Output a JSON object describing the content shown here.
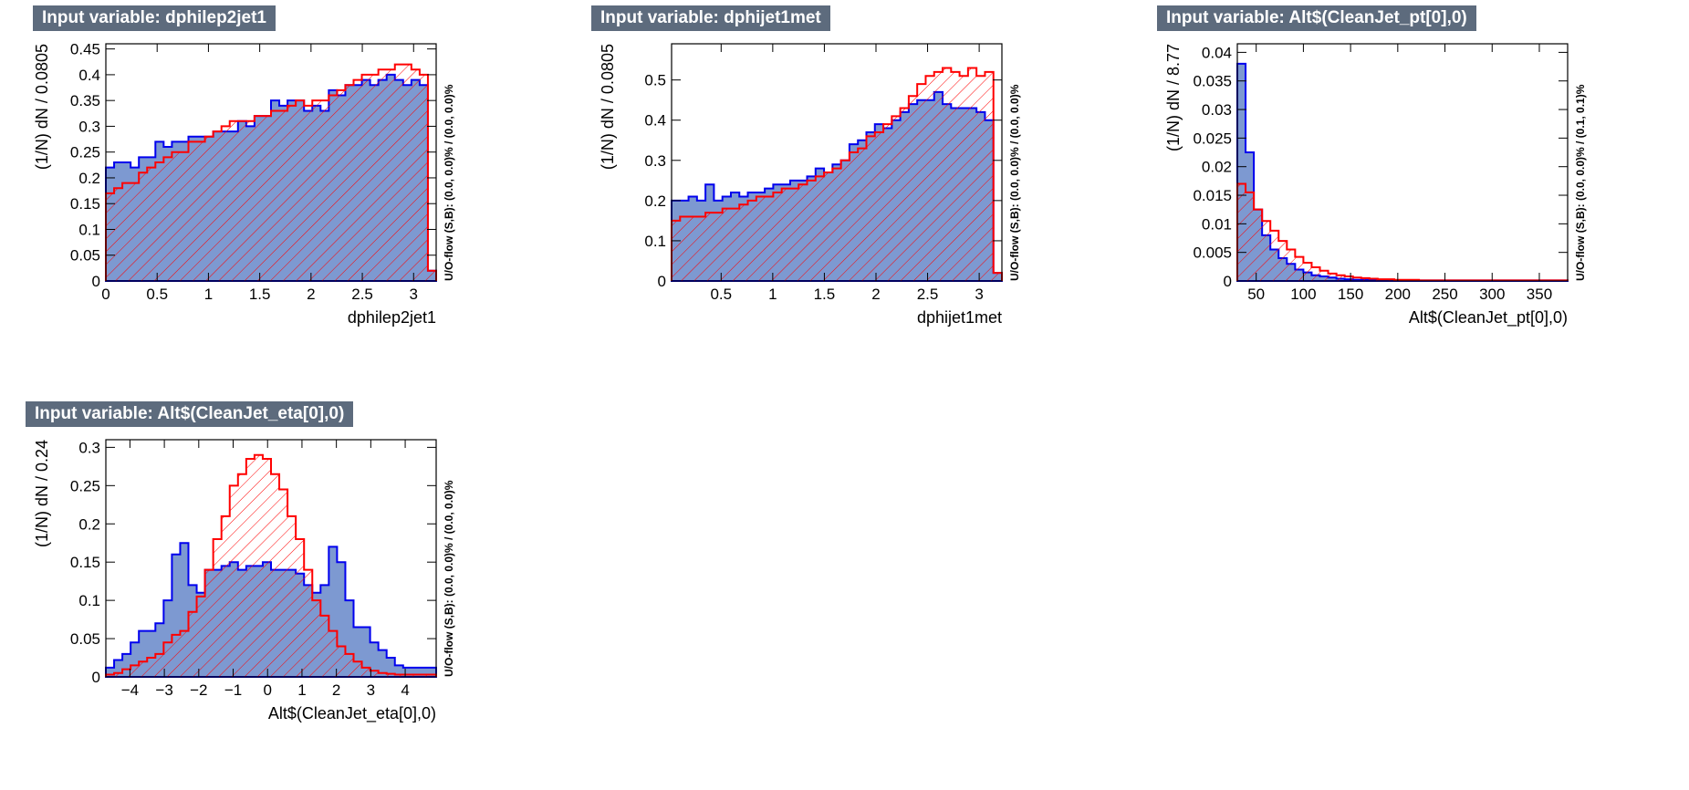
{
  "chart_data": [
    {
      "type": "histogram",
      "title": "Input variable: dphilep2jet1",
      "xlabel": "dphilep2jet1",
      "ylabel": "(1/N) dN / 0.0805",
      "side_label": "U/O-flow (S,B): (0.0, 0.0)% / (0.0, 0.0)%",
      "xlim": [
        0,
        3.22
      ],
      "ylim": [
        0,
        0.46
      ],
      "xticks": [
        "0",
        "0.5",
        "1",
        "1.5",
        "2",
        "2.5",
        "3"
      ],
      "yticks": [
        "0",
        "0.05",
        "0.1",
        "0.15",
        "0.2",
        "0.25",
        "0.3",
        "0.35",
        "0.4",
        "0.45"
      ],
      "series": [
        {
          "values": [
            0.22,
            0.23,
            0.23,
            0.22,
            0.24,
            0.24,
            0.27,
            0.26,
            0.27,
            0.27,
            0.28,
            0.28,
            0.28,
            0.29,
            0.29,
            0.29,
            0.31,
            0.3,
            0.32,
            0.32,
            0.35,
            0.34,
            0.35,
            0.35,
            0.33,
            0.34,
            0.33,
            0.37,
            0.36,
            0.38,
            0.38,
            0.39,
            0.38,
            0.39,
            0.4,
            0.39,
            0.38,
            0.39,
            0.38,
            0.02
          ]
        },
        {
          "values": [
            0.17,
            0.18,
            0.19,
            0.19,
            0.21,
            0.22,
            0.23,
            0.24,
            0.25,
            0.25,
            0.27,
            0.27,
            0.28,
            0.29,
            0.3,
            0.31,
            0.31,
            0.31,
            0.32,
            0.32,
            0.33,
            0.33,
            0.34,
            0.35,
            0.34,
            0.35,
            0.35,
            0.36,
            0.37,
            0.38,
            0.39,
            0.4,
            0.4,
            0.41,
            0.41,
            0.42,
            0.42,
            0.41,
            0.4,
            0.02
          ]
        }
      ]
    },
    {
      "type": "histogram",
      "title": "Input variable: dphijet1met",
      "xlabel": "dphijet1met",
      "ylabel": "(1/N) dN / 0.0805",
      "side_label": "U/O-flow (S,B): (0.0, 0.0)% / (0.0, 0.0)%",
      "xlim": [
        0.02,
        3.22
      ],
      "ylim": [
        0,
        0.59
      ],
      "xticks": [
        "0.5",
        "1",
        "1.5",
        "2",
        "2.5",
        "3"
      ],
      "yticks": [
        "0",
        "0.1",
        "0.2",
        "0.3",
        "0.4",
        "0.5"
      ],
      "series": [
        {
          "values": [
            0.2,
            0.2,
            0.21,
            0.2,
            0.24,
            0.2,
            0.21,
            0.22,
            0.21,
            0.22,
            0.22,
            0.23,
            0.24,
            0.24,
            0.25,
            0.25,
            0.26,
            0.28,
            0.27,
            0.29,
            0.3,
            0.34,
            0.35,
            0.37,
            0.39,
            0.38,
            0.4,
            0.42,
            0.44,
            0.45,
            0.45,
            0.47,
            0.44,
            0.43,
            0.43,
            0.43,
            0.42,
            0.4,
            0.02
          ]
        },
        {
          "values": [
            0.15,
            0.16,
            0.16,
            0.16,
            0.17,
            0.17,
            0.18,
            0.18,
            0.19,
            0.2,
            0.21,
            0.21,
            0.22,
            0.23,
            0.23,
            0.24,
            0.25,
            0.26,
            0.27,
            0.28,
            0.3,
            0.32,
            0.33,
            0.36,
            0.37,
            0.39,
            0.41,
            0.43,
            0.46,
            0.49,
            0.51,
            0.52,
            0.53,
            0.52,
            0.51,
            0.53,
            0.51,
            0.52,
            0.02
          ]
        }
      ]
    },
    {
      "type": "histogram",
      "title": "Input variable: Alt$(CleanJet_pt[0],0)",
      "xlabel": "Alt$(CleanJet_pt[0],0)",
      "ylabel": "(1/N) dN / 8.77",
      "side_label": "U/O-flow (S,B): (0.0, 0.0)% / (0.1, 0.1)%",
      "xlim": [
        30,
        380
      ],
      "ylim": [
        0,
        0.0415
      ],
      "xticks": [
        "50",
        "100",
        "150",
        "200",
        "250",
        "300",
        "350"
      ],
      "yticks": [
        "0",
        "0.005",
        "0.01",
        "0.015",
        "0.02",
        "0.025",
        "0.03",
        "0.035",
        "0.04"
      ],
      "series": [
        {
          "values": [
            0.038,
            0.0225,
            0.0125,
            0.008,
            0.0055,
            0.004,
            0.003,
            0.002,
            0.0015,
            0.001,
            0.0008,
            0.0006,
            0.0004,
            0.0003,
            0.0002,
            0.0002,
            0.0001,
            0.0001,
            0.0001,
            0.0001,
            0.0001,
            0.0001,
            0.0001,
            0.0001,
            0.0001,
            0.0001,
            0.0001,
            0.0001,
            0.0001,
            0.0001,
            0.0001,
            0.0001,
            0.0001,
            0.0001,
            0.0001,
            0.0001,
            0.0001,
            0.0001,
            0.0001,
            0.0001
          ]
        },
        {
          "values": [
            0.017,
            0.0155,
            0.0125,
            0.0105,
            0.0088,
            0.007,
            0.0055,
            0.0042,
            0.0032,
            0.0024,
            0.0018,
            0.0013,
            0.001,
            0.0008,
            0.0006,
            0.0005,
            0.0004,
            0.0003,
            0.0003,
            0.0002,
            0.0002,
            0.0002,
            0.0001,
            0.0001,
            0.0001,
            0.0001,
            0.0001,
            0.0001,
            0.0001,
            0.0001,
            0.0001,
            0.0001,
            0.0001,
            0.0001,
            0.0001,
            0.0001,
            0.0001,
            0.0001,
            0.0001,
            0.0001
          ]
        }
      ]
    },
    {
      "type": "histogram",
      "title": "Input variable: Alt$(CleanJet_eta[0],0)",
      "xlabel": "Alt$(CleanJet_eta[0],0)",
      "ylabel": "(1/N) dN / 0.24",
      "side_label": "U/O-flow (S,B): (0.0, 0.0)% / (0.0, 0.0)%",
      "xlim": [
        -4.7,
        4.9
      ],
      "ylim": [
        0,
        0.31
      ],
      "xticks": [
        "−4",
        "−3",
        "−2",
        "−1",
        "0",
        "1",
        "2",
        "3",
        "4"
      ],
      "yticks": [
        "0",
        "0.05",
        "0.1",
        "0.15",
        "0.2",
        "0.25",
        "0.3"
      ],
      "series": [
        {
          "values": [
            0.012,
            0.022,
            0.03,
            0.045,
            0.06,
            0.06,
            0.07,
            0.1,
            0.16,
            0.175,
            0.12,
            0.11,
            0.14,
            0.14,
            0.145,
            0.15,
            0.14,
            0.145,
            0.145,
            0.15,
            0.14,
            0.14,
            0.14,
            0.135,
            0.12,
            0.11,
            0.12,
            0.17,
            0.15,
            0.1,
            0.065,
            0.065,
            0.045,
            0.035,
            0.025,
            0.015,
            0.012,
            0.012,
            0.012,
            0.012
          ]
        },
        {
          "values": [
            0.003,
            0.005,
            0.01,
            0.015,
            0.02,
            0.025,
            0.03,
            0.045,
            0.055,
            0.06,
            0.085,
            0.105,
            0.14,
            0.18,
            0.21,
            0.25,
            0.265,
            0.285,
            0.29,
            0.285,
            0.265,
            0.245,
            0.21,
            0.18,
            0.14,
            0.1,
            0.08,
            0.06,
            0.04,
            0.03,
            0.02,
            0.012,
            0.008,
            0.005,
            0.004,
            0.003,
            0.003,
            0.003,
            0.003,
            0.003
          ]
        }
      ]
    }
  ],
  "colors": {
    "signal_fill": "#7d99d1",
    "signal_line": "#0000ee",
    "background_line": "#ff0000",
    "title_bg": "#5d6b7d"
  }
}
